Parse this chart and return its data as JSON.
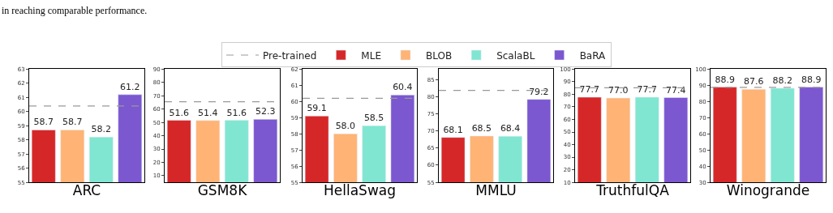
{
  "chart_data": [
    {
      "type": "bar",
      "xlabel": "ARC",
      "categories": [
        null,
        null,
        null,
        null
      ],
      "legend": "top",
      "ylim": [
        55,
        63
      ],
      "yticks": [
        55,
        56,
        57,
        58,
        59,
        60,
        61,
        62,
        63
      ],
      "annotations": [
        "in reaching comparable performance."
      ],
      "ref_lines": [
        {
          "axis": "y",
          "value": 60.4,
          "label": "Pre-trained",
          "color": "#999999",
          "line_style": "dashed"
        }
      ],
      "series": [
        {
          "name": "MLE",
          "color": "#d62728",
          "values": [
            58.7,
            null,
            null,
            null
          ],
          "value_labels": [
            "58.7",
            null,
            null,
            null
          ]
        },
        {
          "name": "BLOB",
          "color": "#ffb375",
          "values": [
            null,
            58.7,
            null,
            null
          ],
          "value_labels": [
            null,
            "58.7",
            null,
            null
          ]
        },
        {
          "name": "ScalaBL",
          "color": "#80e6d1",
          "values": [
            null,
            null,
            58.2,
            null
          ],
          "value_labels": [
            null,
            null,
            "58.2",
            null
          ]
        },
        {
          "name": "BaRA",
          "color": "#7b57d0",
          "values": [
            null,
            null,
            null,
            61.2
          ],
          "value_labels": [
            null,
            null,
            null,
            "61.2"
          ]
        }
      ]
    },
    {
      "type": "bar",
      "xlabel": "GSM8K",
      "categories": [
        null,
        null,
        null,
        null
      ],
      "legend": "top",
      "ylim": [
        5,
        90
      ],
      "yticks": [
        10,
        20,
        30,
        40,
        50,
        60,
        70,
        80,
        90
      ],
      "ref_lines": [
        {
          "axis": "y",
          "value": 65.5,
          "color": "#999999",
          "line_style": "dashed"
        }
      ],
      "series": [
        {
          "name": "MLE",
          "color": "#d62728",
          "values": [
            51.6,
            null,
            null,
            null
          ],
          "value_labels": [
            "51.6",
            null,
            null,
            null
          ]
        },
        {
          "name": "BLOB",
          "color": "#ffb375",
          "values": [
            null,
            51.4,
            null,
            null
          ],
          "value_labels": [
            null,
            "51.4",
            null,
            null
          ]
        },
        {
          "name": "ScalaBL",
          "color": "#80e6d1",
          "values": [
            null,
            null,
            51.6,
            null
          ],
          "value_labels": [
            null,
            null,
            "51.6",
            null
          ]
        },
        {
          "name": "BaRA",
          "color": "#7b57d0",
          "values": [
            null,
            null,
            null,
            52.3
          ],
          "value_labels": [
            null,
            null,
            null,
            "52.3"
          ]
        }
      ]
    },
    {
      "type": "bar",
      "xlabel": "HellaSwag",
      "categories": [
        null,
        null,
        null,
        null
      ],
      "legend": "top",
      "ylim": [
        55,
        62
      ],
      "yticks": [
        55,
        56,
        57,
        58,
        59,
        60,
        61,
        62
      ],
      "ref_lines": [
        {
          "axis": "y",
          "value": 60.2,
          "color": "#999999",
          "line_style": "dashed"
        }
      ],
      "series": [
        {
          "name": "MLE",
          "color": "#d62728",
          "values": [
            59.1,
            null,
            null,
            null
          ],
          "value_labels": [
            "59.1",
            null,
            null,
            null
          ]
        },
        {
          "name": "BLOB",
          "color": "#ffb375",
          "values": [
            null,
            58.0,
            null,
            null
          ],
          "value_labels": [
            null,
            "58.0",
            null,
            null
          ]
        },
        {
          "name": "ScalaBL",
          "color": "#80e6d1",
          "values": [
            null,
            null,
            58.5,
            null
          ],
          "value_labels": [
            null,
            null,
            "58.5",
            null
          ]
        },
        {
          "name": "BaRA",
          "color": "#7b57d0",
          "values": [
            null,
            null,
            null,
            60.4
          ],
          "value_labels": [
            null,
            null,
            null,
            "60.4"
          ]
        }
      ]
    },
    {
      "type": "bar",
      "xlabel": "MMLU",
      "categories": [
        null,
        null,
        null,
        null
      ],
      "legend": "top",
      "ylim": [
        55,
        88
      ],
      "yticks": [
        55,
        60,
        65,
        70,
        75,
        80,
        85
      ],
      "ref_lines": [
        {
          "axis": "y",
          "value": 81.8,
          "color": "#999999",
          "line_style": "dashed"
        }
      ],
      "series": [
        {
          "name": "MLE",
          "color": "#d62728",
          "values": [
            68.1,
            null,
            null,
            null
          ],
          "value_labels": [
            "68.1",
            null,
            null,
            null
          ]
        },
        {
          "name": "BLOB",
          "color": "#ffb375",
          "values": [
            null,
            68.5,
            null,
            null
          ],
          "value_labels": [
            null,
            "68.5",
            null,
            null
          ]
        },
        {
          "name": "ScalaBL",
          "color": "#80e6d1",
          "values": [
            null,
            null,
            68.4,
            null
          ],
          "value_labels": [
            null,
            null,
            "68.4",
            null
          ]
        },
        {
          "name": "BaRA",
          "color": "#7b57d0",
          "values": [
            null,
            null,
            null,
            79.2
          ],
          "value_labels": [
            null,
            null,
            null,
            "79.2"
          ]
        }
      ]
    },
    {
      "type": "bar",
      "xlabel": "TruthfulQA",
      "categories": [
        null,
        null,
        null,
        null
      ],
      "legend": "top",
      "ylim": [
        10,
        100
      ],
      "yticks": [
        10,
        20,
        30,
        40,
        50,
        60,
        70,
        80,
        90,
        100
      ],
      "ref_lines": [
        {
          "axis": "y",
          "value": 85.2,
          "color": "#999999",
          "line_style": "dashed"
        }
      ],
      "series": [
        {
          "name": "MLE",
          "color": "#d62728",
          "values": [
            77.7,
            null,
            null,
            null
          ],
          "value_labels": [
            "77.7",
            null,
            null,
            null
          ]
        },
        {
          "name": "BLOB",
          "color": "#ffb375",
          "values": [
            null,
            77.0,
            null,
            null
          ],
          "value_labels": [
            null,
            "77.0",
            null,
            null
          ]
        },
        {
          "name": "ScalaBL",
          "color": "#80e6d1",
          "values": [
            null,
            null,
            77.7,
            null
          ],
          "value_labels": [
            null,
            null,
            "77.7",
            null
          ]
        },
        {
          "name": "BaRA",
          "color": "#7b57d0",
          "values": [
            null,
            null,
            null,
            77.4
          ],
          "value_labels": [
            null,
            null,
            null,
            "77.4"
          ]
        }
      ]
    },
    {
      "type": "bar",
      "xlabel": "Winogrande",
      "categories": [
        null,
        null,
        null,
        null
      ],
      "legend": "top",
      "ylim": [
        30,
        100
      ],
      "yticks": [
        30,
        40,
        50,
        60,
        70,
        80,
        90,
        100
      ],
      "ref_lines": [
        {
          "axis": "y",
          "value": 88.8,
          "color": "#999999",
          "line_style": "dashed"
        }
      ],
      "series": [
        {
          "name": "MLE",
          "color": "#d62728",
          "values": [
            88.9,
            null,
            null,
            null
          ],
          "value_labels": [
            "88.9",
            null,
            null,
            null
          ]
        },
        {
          "name": "BLOB",
          "color": "#ffb375",
          "values": [
            null,
            87.6,
            null,
            null
          ],
          "value_labels": [
            null,
            "87.6",
            null,
            null
          ]
        },
        {
          "name": "ScalaBL",
          "color": "#80e6d1",
          "values": [
            null,
            null,
            88.2,
            null
          ],
          "value_labels": [
            null,
            null,
            "88.2",
            null
          ]
        },
        {
          "name": "BaRA",
          "color": "#7b57d0",
          "values": [
            null,
            null,
            null,
            88.9
          ],
          "value_labels": [
            null,
            null,
            null,
            "88.9"
          ]
        }
      ]
    }
  ]
}
